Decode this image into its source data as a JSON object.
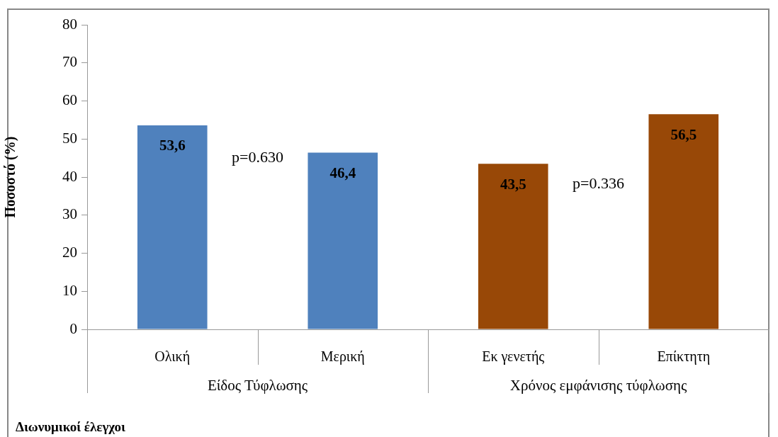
{
  "chart_data": {
    "type": "bar",
    "ylabel": "Ποσοστό (%)",
    "categories": [
      "Ολική",
      "Μερική",
      "Εκ γενετής",
      "Επίκτητη"
    ],
    "values": [
      53.6,
      46.4,
      43.5,
      56.5
    ],
    "colors": [
      "#4f81bd",
      "#4f81bd",
      "#984807",
      "#984807"
    ],
    "value_labels": [
      "53,6",
      "46,4",
      "43,5",
      "56,5"
    ],
    "ylim": [
      0,
      80
    ],
    "yticks": [
      0,
      10,
      20,
      30,
      40,
      50,
      60,
      70,
      80
    ],
    "annotations": [
      "p=0.630",
      "p=0.336",
      "Είδος Τύφλωσης",
      "Χρόνος εμφάνισης τύφλωσης",
      "Διωνυμικοί έλεγχοι"
    ],
    "legend": false
  }
}
